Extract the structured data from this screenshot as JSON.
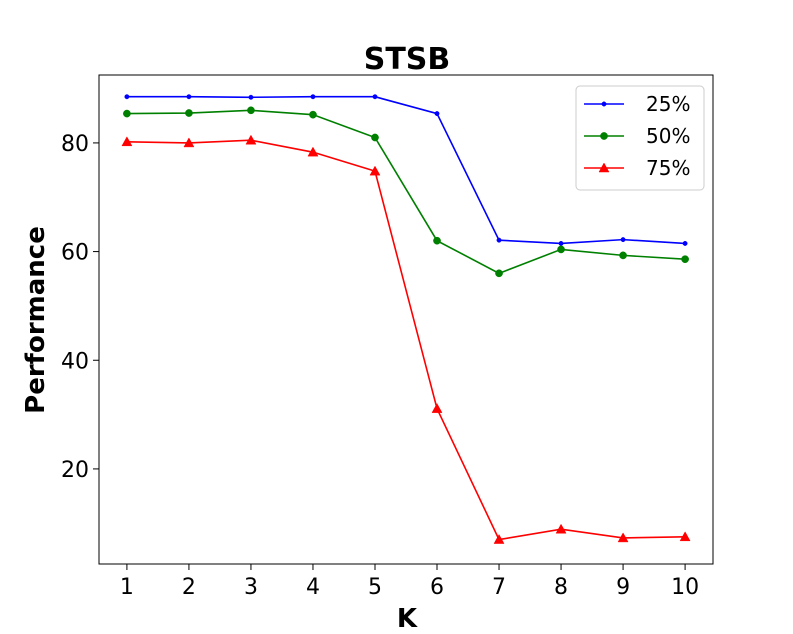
{
  "chart_data": {
    "type": "line",
    "title": "STSB",
    "xlabel": "K",
    "ylabel": "Performance",
    "x": [
      1,
      2,
      3,
      4,
      5,
      6,
      7,
      8,
      9,
      10
    ],
    "xlim": [
      0.55,
      10.45
    ],
    "ylim": [
      2.5,
      92.5
    ],
    "xticks": [
      "1",
      "2",
      "3",
      "4",
      "5",
      "6",
      "7",
      "8",
      "9",
      "10"
    ],
    "yticks": [
      20,
      40,
      60,
      80
    ],
    "ytick_labels": [
      "20",
      "40",
      "60",
      "80"
    ],
    "grid": false,
    "legend_position": "top-right",
    "series": [
      {
        "name": "25%",
        "color": "#0000ff",
        "marker": "point",
        "values": [
          88.5,
          88.5,
          88.4,
          88.5,
          88.5,
          85.4,
          62.1,
          61.5,
          62.2,
          61.5
        ]
      },
      {
        "name": "50%",
        "color": "#008000",
        "marker": "circle",
        "values": [
          85.4,
          85.5,
          86.0,
          85.2,
          81.0,
          62.0,
          56.0,
          60.4,
          59.3,
          58.6
        ]
      },
      {
        "name": "75%",
        "color": "#ff0000",
        "marker": "triangle",
        "values": [
          80.2,
          80.0,
          80.5,
          78.3,
          74.8,
          31.1,
          7.0,
          8.9,
          7.3,
          7.5
        ]
      }
    ]
  }
}
